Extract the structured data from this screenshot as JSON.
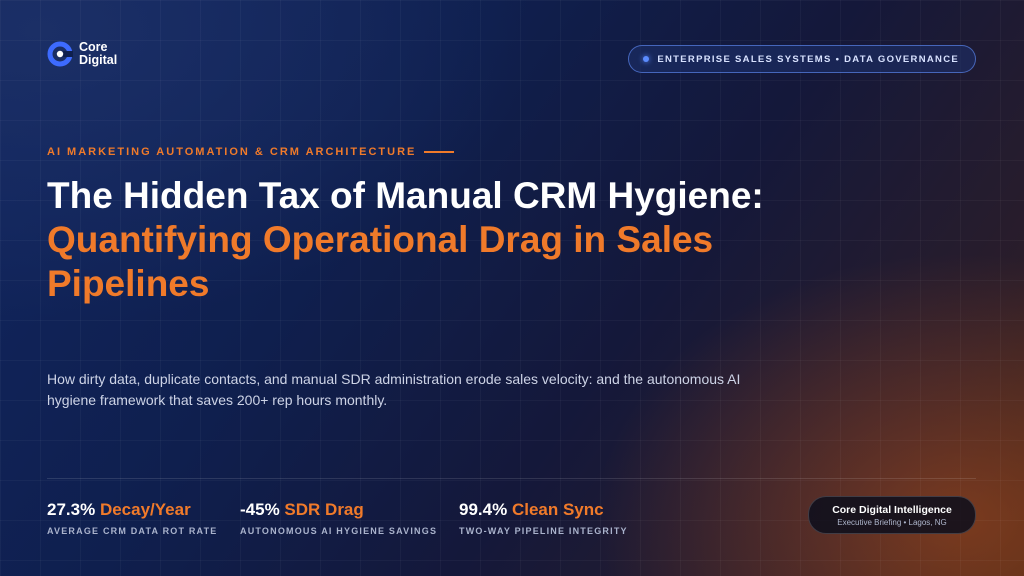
{
  "brand": {
    "name_line1": "Core",
    "name_line2": "Digital"
  },
  "header": {
    "pill_text": "ENTERPRISE SALES SYSTEMS • DATA GOVERNANCE"
  },
  "hero": {
    "eyebrow": "AI MARKETING AUTOMATION & CRM ARCHITECTURE",
    "title": "The Hidden Tax of Manual CRM Hygiene:",
    "title_accent": "Quantifying Operational Drag in Sales Pipelines",
    "description": "How dirty data, duplicate contacts, and manual SDR administration erode sales velocity: and the autonomous AI hygiene framework that saves 200+ rep hours monthly."
  },
  "stats": [
    {
      "value": "27.3%",
      "accent": "Decay/Year",
      "label": "AVERAGE CRM DATA ROT RATE"
    },
    {
      "value": "-45%",
      "accent": "SDR Drag",
      "label": "AUTONOMOUS AI HYGIENE SAVINGS"
    },
    {
      "value": "99.4%",
      "accent": "Clean Sync",
      "label": "TWO-WAY PIPELINE INTEGRITY"
    }
  ],
  "badge": {
    "title": "Core Digital Intelligence",
    "subtitle": "Executive Briefing • Lagos, NG"
  },
  "colors": {
    "accent": "#f07a2a",
    "background": "#0f1f4e",
    "pill_dot": "#5b8cff"
  }
}
